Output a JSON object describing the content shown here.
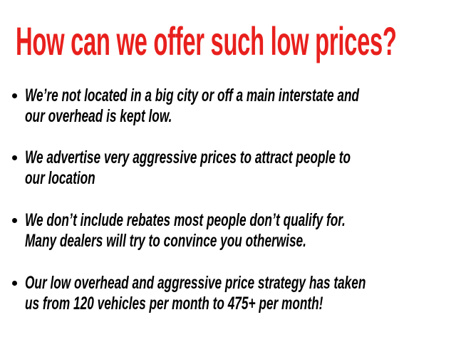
{
  "title": "How can we offer such low prices?",
  "colors": {
    "title": "#e8201d",
    "text": "#000000"
  },
  "bullets": [
    {
      "lines": [
        "We’re not located in a big city or off a main interstate and",
        "our overhead is kept low."
      ]
    },
    {
      "lines": [
        "We advertise very aggressive prices to attract people to",
        "our location"
      ]
    },
    {
      "lines": [
        "We don’t include rebates most people don’t qualify for.",
        "Many dealers will try to convince you otherwise."
      ]
    },
    {
      "lines": [
        "Our low overhead and aggressive price strategy has taken",
        "us from 120 vehicles per month to 475+ per month!"
      ]
    }
  ]
}
